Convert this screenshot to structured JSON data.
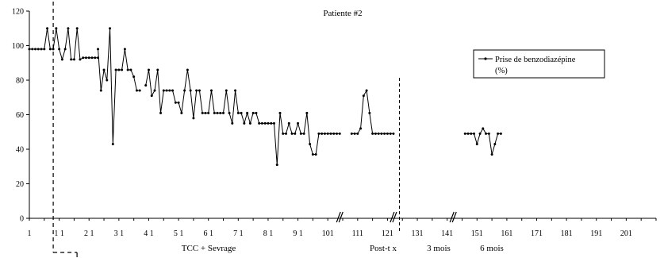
{
  "chart_data": {
    "type": "line",
    "title": "Patiente #2",
    "xlabel": "",
    "ylabel": "",
    "xlim": [
      1,
      211
    ],
    "ylim": [
      0,
      120
    ],
    "yticks": [
      0,
      20,
      40,
      60,
      80,
      100,
      120
    ],
    "xtick_labels": [
      "1",
      "1 1",
      "2 1",
      "3 1",
      "4 1",
      "5 1",
      "6 1",
      "7 1",
      "8 1",
      "9 1",
      "101",
      "111",
      "121",
      "131",
      "141",
      "151",
      "161",
      "171",
      "181",
      "191",
      "201"
    ],
    "phase_labels": [
      "TCC + Sevrage",
      "Post-t  x",
      "3 mois",
      "6 mois"
    ],
    "legend": {
      "position": "top-right",
      "lines": [
        "Prise de benzodiazépine",
        "(%)"
      ]
    },
    "series": [
      {
        "name": "Prise de benzodiazépine (%)",
        "color": "#000000",
        "marker": "dot",
        "segments": [
          {
            "x": [
              1,
              2,
              3,
              4,
              5,
              6,
              7,
              8,
              9,
              10,
              11,
              12,
              13,
              14,
              15,
              16,
              17,
              18,
              19,
              20,
              21,
              22,
              23,
              24
            ],
            "y": [
              98,
              98,
              98,
              98,
              98,
              98,
              110,
              98,
              98,
              110,
              98,
              92,
              98,
              110,
              92,
              92,
              110,
              92,
              93,
              93,
              93,
              93,
              93,
              93
            ]
          },
          {
            "x": [
              24,
              25,
              26,
              27,
              28,
              29,
              30,
              31,
              32,
              33,
              34,
              35,
              36,
              37,
              38
            ],
            "y": [
              98,
              74,
              86,
              80,
              110,
              43,
              86,
              86,
              86,
              98,
              86,
              86,
              82,
              74,
              74
            ]
          },
          {
            "x": [
              40,
              41,
              42,
              43,
              44,
              45,
              46,
              47,
              48,
              49,
              50,
              51,
              52,
              53,
              54,
              55,
              56,
              57,
              58,
              59,
              60,
              61,
              62,
              63,
              64,
              65,
              66,
              67,
              68,
              69,
              70,
              71,
              72,
              73,
              74,
              75,
              76,
              77,
              78,
              79,
              80,
              81,
              82,
              83,
              84,
              85,
              86,
              87,
              88,
              89,
              90,
              91,
              92,
              93,
              94,
              95,
              96,
              97,
              98,
              99,
              100,
              101,
              102,
              103,
              104,
              105
            ],
            "y": [
              77,
              86,
              71,
              74,
              86,
              61,
              74,
              74,
              74,
              74,
              67,
              67,
              61,
              74,
              86,
              74,
              58,
              74,
              74,
              61,
              61,
              61,
              74,
              61,
              61,
              61,
              61,
              74,
              61,
              55,
              74,
              61,
              61,
              55,
              61,
              55,
              61,
              61,
              55,
              55,
              55,
              55,
              55,
              55,
              31,
              61,
              49,
              49,
              55,
              49,
              49,
              55,
              49,
              49,
              61,
              43,
              37,
              37,
              49,
              49,
              49,
              49,
              49,
              49,
              49,
              49
            ]
          },
          {
            "x": [
              109,
              110,
              111,
              112,
              113,
              114,
              115,
              116,
              117,
              118,
              119,
              120,
              121,
              122,
              123
            ],
            "y": [
              49,
              49,
              49,
              52,
              71,
              74,
              61,
              49,
              49,
              49,
              49,
              49,
              49,
              49,
              49
            ]
          },
          {
            "x": [
              147,
              148,
              149,
              150,
              151,
              152,
              153,
              154,
              155,
              156,
              157,
              158,
              159
            ],
            "y": [
              49,
              49,
              49,
              49,
              43,
              49,
              52,
              49,
              49,
              37,
              43,
              49,
              49
            ]
          }
        ]
      }
    ],
    "annotations": [
      {
        "kind": "dashed-vline",
        "at_x": 9
      },
      {
        "kind": "dashed-vline",
        "at_x": 125
      },
      {
        "kind": "axis-break",
        "at_x": 105
      },
      {
        "kind": "axis-break",
        "at_x": 123
      },
      {
        "kind": "axis-break",
        "at_x": 143
      }
    ]
  }
}
